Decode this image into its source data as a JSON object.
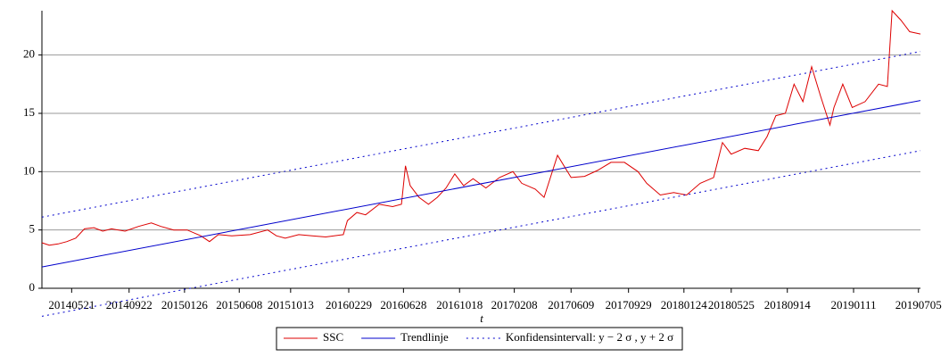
{
  "chart_data": {
    "type": "line",
    "x_label": "t",
    "xlim": [
      0,
      1300
    ],
    "ylim": [
      0,
      23.8
    ],
    "yticks": [
      0,
      5,
      10,
      15,
      20
    ],
    "xticks": [
      {
        "value": 44,
        "label": "20140521"
      },
      {
        "value": 129,
        "label": "20140922"
      },
      {
        "value": 211,
        "label": "20150126"
      },
      {
        "value": 292,
        "label": "20150608"
      },
      {
        "value": 368,
        "label": "20151013"
      },
      {
        "value": 454,
        "label": "20160229"
      },
      {
        "value": 535,
        "label": "20160628"
      },
      {
        "value": 618,
        "label": "20161018"
      },
      {
        "value": 699,
        "label": "20170208"
      },
      {
        "value": 783,
        "label": "20170609"
      },
      {
        "value": 868,
        "label": "20170929"
      },
      {
        "value": 950,
        "label": "20180124"
      },
      {
        "value": 1020,
        "label": "20180525"
      },
      {
        "value": 1103,
        "label": "20180914"
      },
      {
        "value": 1201,
        "label": "20190111"
      },
      {
        "value": 1297,
        "label": "20190705"
      }
    ],
    "grid": true,
    "series": [
      {
        "name": "SSC",
        "color": "#dd0000",
        "dash": "solid",
        "x": [
          0,
          11,
          24,
          37,
          50,
          63,
          77,
          90,
          103,
          123,
          143,
          162,
          176,
          195,
          215,
          235,
          248,
          261,
          281,
          308,
          334,
          347,
          360,
          380,
          400,
          420,
          446,
          452,
          466,
          479,
          499,
          519,
          532,
          538,
          545,
          558,
          572,
          585,
          598,
          611,
          624,
          638,
          657,
          677,
          697,
          710,
          730,
          743,
          763,
          783,
          803,
          822,
          842,
          862,
          882,
          895,
          915,
          935,
          954,
          974,
          994,
          1007,
          1020,
          1040,
          1060,
          1073,
          1086,
          1100,
          1113,
          1126,
          1139,
          1152,
          1166,
          1172,
          1185,
          1199,
          1218,
          1238,
          1251,
          1258,
          1271,
          1284,
          1300
        ],
        "values": [
          3.9,
          3.7,
          3.8,
          4.0,
          4.3,
          5.1,
          5.2,
          4.9,
          5.1,
          4.9,
          5.3,
          5.6,
          5.3,
          5.0,
          5.0,
          4.5,
          4.0,
          4.6,
          4.5,
          4.6,
          5.0,
          4.5,
          4.3,
          4.6,
          4.5,
          4.4,
          4.6,
          5.8,
          6.5,
          6.3,
          7.2,
          7.0,
          7.2,
          10.5,
          8.8,
          7.8,
          7.2,
          7.8,
          8.6,
          9.8,
          8.8,
          9.4,
          8.6,
          9.5,
          10.0,
          9.0,
          8.5,
          7.8,
          11.4,
          9.5,
          9.6,
          10.1,
          10.8,
          10.8,
          10.0,
          9.0,
          8.0,
          8.2,
          8.0,
          9.0,
          9.5,
          12.5,
          11.5,
          12.0,
          11.8,
          13.0,
          14.8,
          15.0,
          17.5,
          16.0,
          19.0,
          16.5,
          14.0,
          15.5,
          17.5,
          15.5,
          16.0,
          17.5,
          17.3,
          23.8,
          23.0,
          22.0,
          21.8
        ]
      },
      {
        "name": "Trendlinje",
        "color": "#0000cc",
        "dash": "solid",
        "x": [
          0,
          1300
        ],
        "values": [
          1.83,
          16.1
        ]
      },
      {
        "name": "Konfidensintervall: y − 2 σ , y + 2 σ",
        "color": "#0000cc",
        "dash": "dotted",
        "x": [
          0,
          1300
        ],
        "values": [
          -2.4,
          11.8
        ]
      },
      {
        "name": null,
        "color": "#0000cc",
        "dash": "dotted",
        "x": [
          0,
          1300
        ],
        "values": [
          6.1,
          20.3
        ]
      }
    ]
  }
}
